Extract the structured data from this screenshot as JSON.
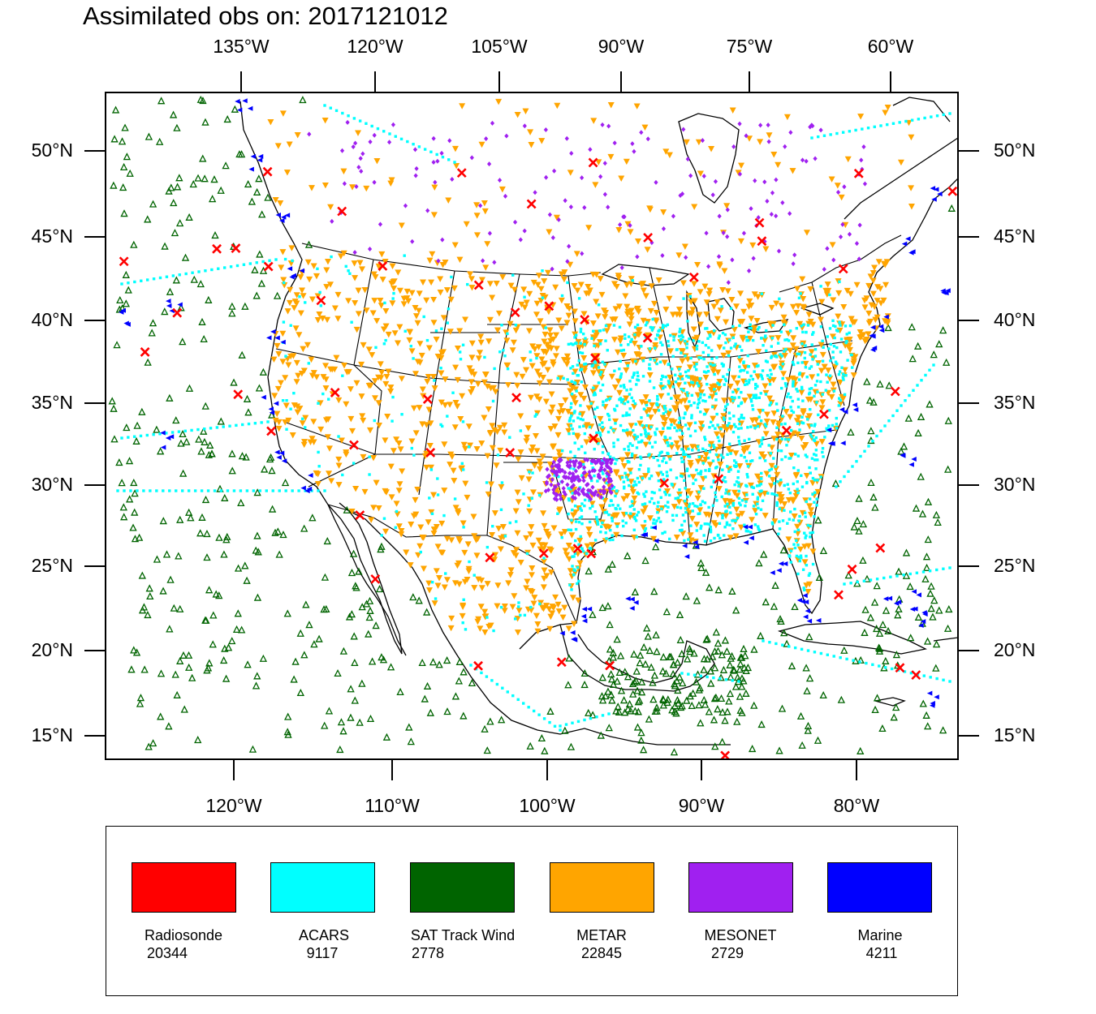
{
  "title": "Assimilated obs on: 2017121012",
  "axes": {
    "top_lon_labels": [
      "135°W",
      "120°W",
      "105°W",
      "90°W",
      "75°W",
      "60°W"
    ],
    "bottom_lon_labels": [
      "120°W",
      "110°W",
      "100°W",
      "90°W",
      "80°W"
    ],
    "lat_labels": [
      "50°N",
      "45°N",
      "40°N",
      "35°N",
      "30°N",
      "25°N",
      "20°N",
      "15°N"
    ]
  },
  "legend": [
    {
      "name": "Radiosonde",
      "count": "20344",
      "color": "#ff0000"
    },
    {
      "name": "ACARS",
      "count": "9117",
      "color": "#00ffff"
    },
    {
      "name": "SAT Track Wind",
      "count": "2778",
      "color": "#006400"
    },
    {
      "name": "METAR",
      "count": "22845",
      "color": "#ffa500"
    },
    {
      "name": "MESONET",
      "count": "2729",
      "color": "#a020f0"
    },
    {
      "name": "Marine",
      "count": "4211",
      "color": "#0000ff"
    }
  ],
  "marker_symbols": {
    "Radiosonde": "x-cross",
    "ACARS": "small-square",
    "SAT Track Wind": "triangle-up",
    "METAR": "triangle-down",
    "MESONET": "diamond",
    "Marine": "triangle-left"
  },
  "chart_data": {
    "type": "scatter",
    "title": "Assimilated obs on: 2017121012",
    "projection": "lambert-conformal",
    "lat_range": [
      15,
      50
    ],
    "lon_range": [
      -120,
      -80
    ],
    "grid": false,
    "legend_position": "bottom",
    "series": [
      {
        "name": "Radiosonde",
        "count": 20344,
        "points": [
          [
            -114.1,
            48.3
          ],
          [
            -110.5,
            46.1
          ],
          [
            -104.3,
            48.6
          ],
          [
            -100.8,
            46.8
          ],
          [
            -97.7,
            49.3
          ],
          [
            -94.8,
            44.8
          ],
          [
            -89.1,
            45.6
          ],
          [
            -84.3,
            48.4
          ],
          [
            -79.4,
            47.1
          ],
          [
            -73.4,
            51.3
          ],
          [
            -117.2,
            43.5
          ],
          [
            -122.2,
            42.4
          ],
          [
            -116.2,
            43.6
          ],
          [
            -114.6,
            42.6
          ],
          [
            -108.6,
            42.9
          ],
          [
            -103.6,
            41.9
          ],
          [
            -101.7,
            40.3
          ],
          [
            -99.9,
            40.7
          ],
          [
            -98.0,
            39.9
          ],
          [
            -94.6,
            38.8
          ],
          [
            -97.4,
            37.6
          ],
          [
            -101.7,
            35.2
          ],
          [
            -106.6,
            35.0
          ],
          [
            -111.7,
            35.2
          ],
          [
            -112.0,
            40.7
          ],
          [
            -117.1,
            34.8
          ],
          [
            -119.8,
            39.5
          ],
          [
            -121.9,
            37.0
          ],
          [
            -115.5,
            32.7
          ],
          [
            -110.9,
            32.1
          ],
          [
            -106.6,
            31.8
          ],
          [
            -102.1,
            31.9
          ],
          [
            -97.4,
            32.8
          ],
          [
            -93.3,
            30.1
          ],
          [
            -90.2,
            30.3
          ],
          [
            -86.6,
            33.1
          ],
          [
            -84.6,
            34.0
          ],
          [
            -80.8,
            35.2
          ],
          [
            -76.6,
            34.8
          ],
          [
            -75.5,
            38.1
          ],
          [
            -73.9,
            40.9
          ],
          [
            -70.9,
            41.6
          ],
          [
            -68.0,
            46.9
          ],
          [
            -77.5,
            43.2
          ],
          [
            -84.5,
            42.7
          ],
          [
            -88.9,
            44.5
          ],
          [
            -92.3,
            42.4
          ],
          [
            -98.2,
            26.2
          ],
          [
            -97.4,
            25.9
          ],
          [
            -100.2,
            25.9
          ],
          [
            -103.4,
            25.6
          ],
          [
            -110.9,
            27.9
          ],
          [
            -110.3,
            24.1
          ],
          [
            -104.3,
            19.1
          ],
          [
            -99.1,
            19.4
          ],
          [
            -96.1,
            19.2
          ],
          [
            -88.4,
            13.7
          ],
          [
            -80.3,
            25.8
          ],
          [
            -81.8,
            24.6
          ],
          [
            -77.9,
            18.5
          ],
          [
            -82.4,
            23.1
          ],
          [
            -76.8,
            18.0
          ]
        ]
      },
      {
        "name": "ACARS",
        "count": 9117
      },
      {
        "name": "SAT Track Wind",
        "count": 2778
      },
      {
        "name": "METAR",
        "count": 22845
      },
      {
        "name": "MESONET",
        "count": 2729
      },
      {
        "name": "Marine",
        "count": 4211
      }
    ]
  }
}
